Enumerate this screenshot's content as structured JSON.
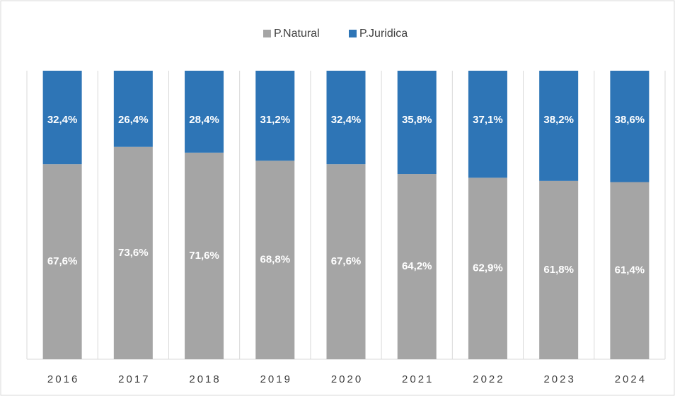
{
  "chart_data": {
    "type": "stacked_bar",
    "categories": [
      "2016",
      "2017",
      "2018",
      "2019",
      "2020",
      "2021",
      "2022",
      "2023",
      "2024"
    ],
    "series": [
      {
        "name": "P.Natural",
        "color": "#a5a5a5",
        "values": [
          67.6,
          73.6,
          71.6,
          68.8,
          67.6,
          64.2,
          62.9,
          61.8,
          61.4
        ],
        "value_labels": [
          "67,6%",
          "73,6%",
          "71,6%",
          "68,8%",
          "67,6%",
          "64,2%",
          "62,9%",
          "61,8%",
          "61,4%"
        ]
      },
      {
        "name": "P.Juridica",
        "color": "#2e75b6",
        "values": [
          32.4,
          26.4,
          28.4,
          31.2,
          32.4,
          35.8,
          37.1,
          38.2,
          38.6
        ],
        "value_labels": [
          "32,4%",
          "26,4%",
          "28,4%",
          "31,2%",
          "32,4%",
          "35,8%",
          "37,1%",
          "38,2%",
          "38,6%"
        ]
      }
    ],
    "ylim": [
      0,
      100
    ],
    "legend": "top"
  }
}
